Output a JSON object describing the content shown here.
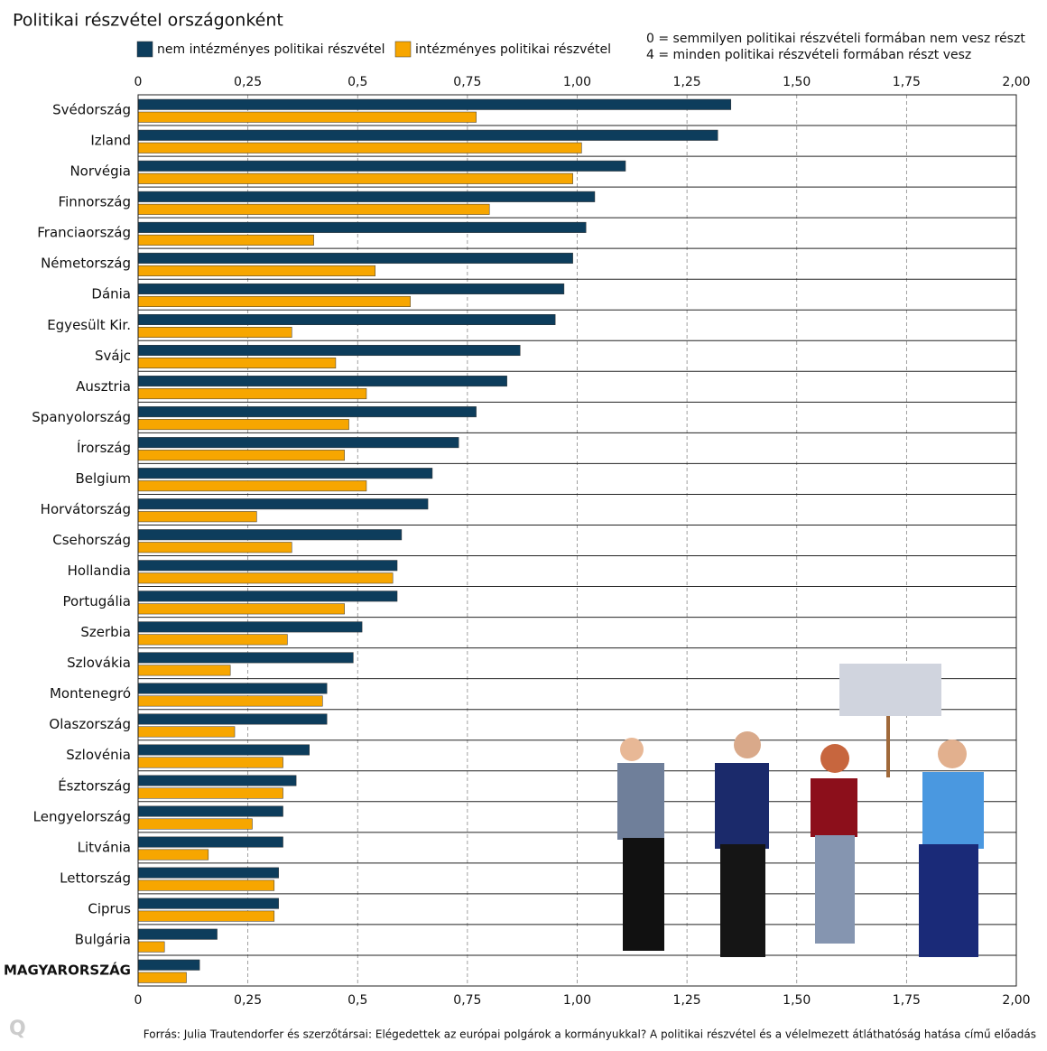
{
  "chart_data": {
    "type": "grouped-hbar",
    "title": "Politikai részvétel országonként",
    "notes": [
      "0 = semmilyen politikai részvételi formában nem vesz részt",
      "4 = minden politikai részvételi formában részt vesz"
    ],
    "source": "Forrás:  Julia Trautendorfer és szerzőtársai: Elégedettek az európai polgárok a kormányukkal? A politikai részvétel és a vélelmezett átláthatóság hatása című előadás",
    "logo": "Q",
    "categories": [
      "Svédország",
      "Izland",
      "Norvégia",
      "Finnország",
      "Franciaország",
      "Németország",
      "Dánia",
      "Egyesült Kir.",
      "Svájc",
      "Ausztria",
      "Spanyolország",
      "Írország",
      "Belgium",
      "Horvátország",
      "Csehország",
      "Hollandia",
      "Portugália",
      "Szerbia",
      "Szlovákia",
      "Montenegró",
      "Olaszország",
      "Szlovénia",
      "Észtország",
      "Lengyelország",
      "Litvánia",
      "Lettország",
      "Ciprus",
      "Bulgária",
      "MAGYARORSZÁG"
    ],
    "series": [
      {
        "name": "nem intézményes politikai részvétel",
        "color": "#0d3d5c",
        "values": [
          1.35,
          1.32,
          1.11,
          1.04,
          1.02,
          0.99,
          0.97,
          0.95,
          0.87,
          0.84,
          0.77,
          0.73,
          0.67,
          0.66,
          0.6,
          0.59,
          0.59,
          0.51,
          0.49,
          0.43,
          0.43,
          0.39,
          0.36,
          0.33,
          0.33,
          0.32,
          0.32,
          0.18,
          0.14
        ]
      },
      {
        "name": "intézményes politikai részvétel",
        "color": "#f7a600",
        "values": [
          0.77,
          1.01,
          0.99,
          0.8,
          0.4,
          0.54,
          0.62,
          0.35,
          0.45,
          0.52,
          0.48,
          0.47,
          0.52,
          0.27,
          0.35,
          0.58,
          0.47,
          0.34,
          0.21,
          0.42,
          0.22,
          0.33,
          0.33,
          0.26,
          0.16,
          0.31,
          0.31,
          0.06,
          0.11
        ]
      }
    ],
    "xlim": [
      0,
      2
    ],
    "xticks": [
      0,
      {
        "value": 0.25,
        "label": "0,25"
      },
      {
        "value": 0.5,
        "label": "0,5"
      },
      {
        "value": 0.75,
        "label": "0,75"
      },
      {
        "value": 1,
        "label": "1,00"
      },
      {
        "value": 1.25,
        "label": "1,25"
      },
      {
        "value": 1.5,
        "label": "1,50"
      },
      {
        "value": 1.75,
        "label": "1,75"
      },
      {
        "value": 2,
        "label": "2,00"
      }
    ],
    "grid": true
  }
}
